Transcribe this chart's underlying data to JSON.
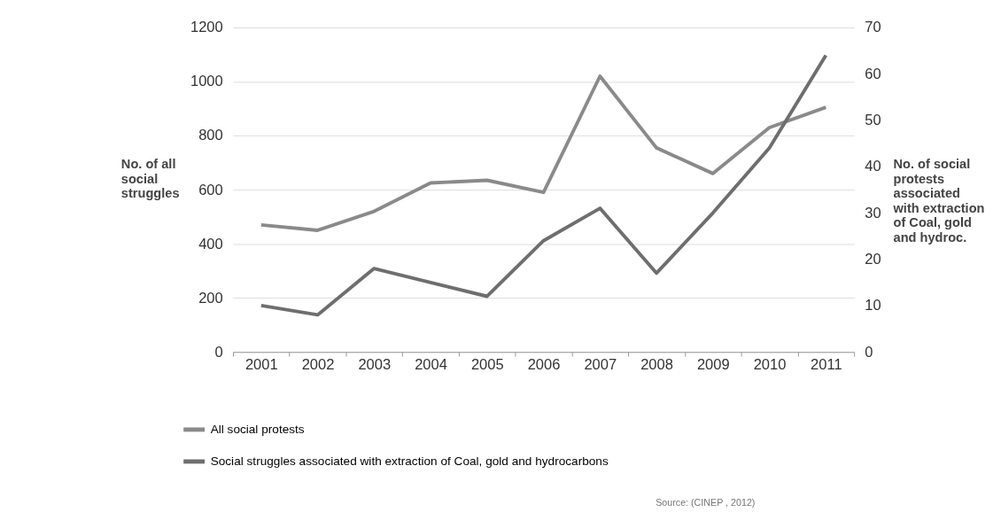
{
  "chart_data": {
    "type": "line",
    "categories": [
      "2001",
      "2002",
      "2003",
      "2004",
      "2005",
      "2006",
      "2007",
      "2008",
      "2009",
      "2010",
      "2011"
    ],
    "series": [
      {
        "name": "All social protests",
        "color": "#8a8a8a",
        "values": [
          470,
          450,
          520,
          625,
          635,
          590,
          1020,
          755,
          660,
          830,
          905
        ]
      },
      {
        "name": "Social struggles associated with extraction of Coal, gold and hydrocarbons",
        "color": "#6e6e6e",
        "axis": "y2",
        "values": [
          10,
          8,
          18,
          15,
          12,
          24,
          31,
          17,
          30,
          44,
          64
        ]
      }
    ],
    "ylabel": "No. of all\nsocial\nstruggles",
    "y2label": "No. of social\nprotests\nassociated\nwith extraction\nof Coal, gold\nand hydroc.",
    "ylim": [
      0,
      1200
    ],
    "yticks": [
      0,
      200,
      400,
      600,
      800,
      1000,
      1200
    ],
    "y2lim": [
      0,
      70
    ],
    "y2ticks": [
      0,
      10,
      20,
      30,
      40,
      50,
      60,
      70
    ],
    "grid": "y",
    "legend": "bottom left",
    "marker": "none",
    "line_style": "solid",
    "annotations": [
      "Source: (CINEP , 2012)"
    ]
  }
}
